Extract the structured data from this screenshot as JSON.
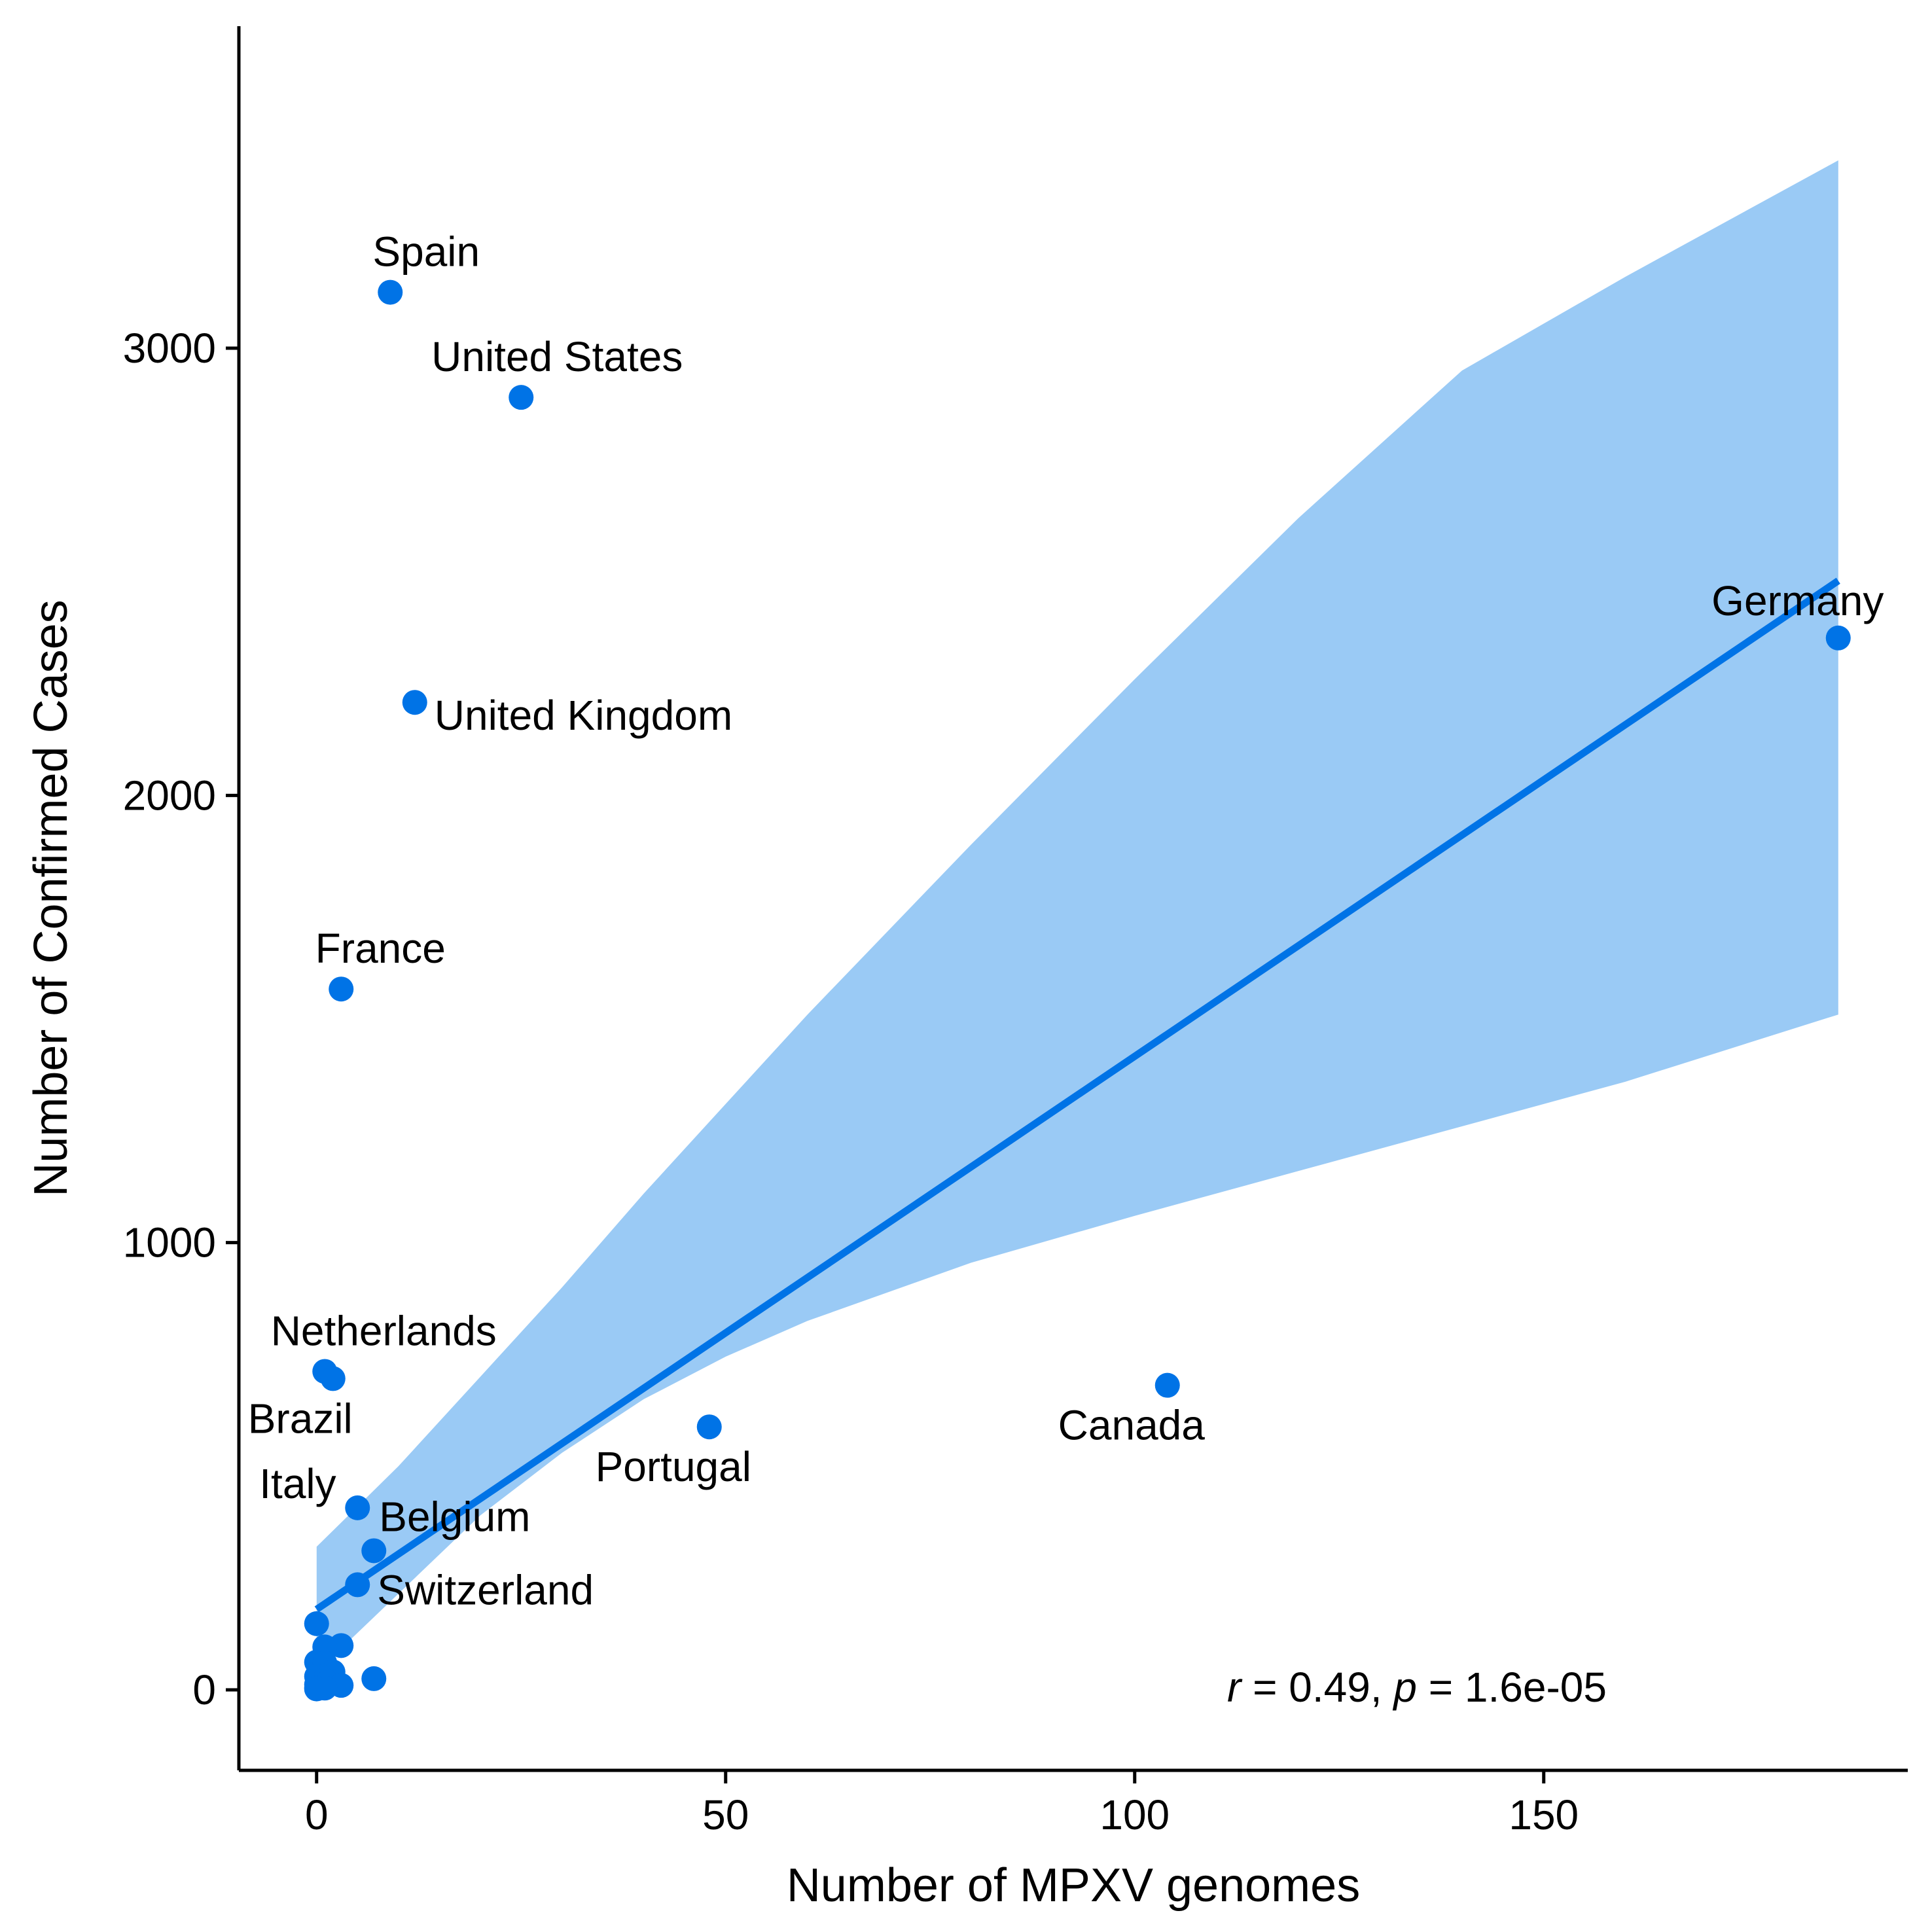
{
  "chart_data": {
    "type": "scatter",
    "xlabel": "Number of MPXV genomes",
    "ylabel": "Number of Confirmed Cases",
    "xlim": [
      -9.5,
      194.5
    ],
    "ylim": [
      -180,
      3720
    ],
    "xticks": [
      0,
      50,
      100,
      150
    ],
    "yticks": [
      0,
      1000,
      2000,
      3000
    ],
    "grid": false,
    "points": [
      {
        "label": "Spain",
        "x": 9,
        "y": 3125
      },
      {
        "label": "United States",
        "x": 25,
        "y": 2890
      },
      {
        "label": "Germany",
        "x": 186,
        "y": 2352
      },
      {
        "label": "United Kingdom",
        "x": 12,
        "y": 2208
      },
      {
        "label": "France",
        "x": 3,
        "y": 1567
      },
      {
        "label": "Netherlands",
        "x": 1,
        "y": 712
      },
      {
        "label": "Brazil",
        "x": 2,
        "y": 696
      },
      {
        "label": "Canada",
        "x": 104,
        "y": 681
      },
      {
        "label": "Portugal",
        "x": 48,
        "y": 588
      },
      {
        "label": "Italy",
        "x": 5,
        "y": 407
      },
      {
        "label": "Belgium",
        "x": 7,
        "y": 311
      },
      {
        "label": "Switzerland",
        "x": 5,
        "y": 235
      },
      {
        "label": "",
        "x": 0,
        "y": 148
      },
      {
        "label": "",
        "x": 3,
        "y": 99
      },
      {
        "label": "",
        "x": 1,
        "y": 96
      },
      {
        "label": "",
        "x": 0,
        "y": 62
      },
      {
        "label": "",
        "x": 1,
        "y": 60
      },
      {
        "label": "",
        "x": 2,
        "y": 40
      },
      {
        "label": "",
        "x": 0,
        "y": 30
      },
      {
        "label": "",
        "x": 7,
        "y": 25
      },
      {
        "label": "",
        "x": 1,
        "y": 22
      },
      {
        "label": "",
        "x": 0,
        "y": 12
      },
      {
        "label": "",
        "x": 3,
        "y": 10
      },
      {
        "label": "",
        "x": 0,
        "y": 5
      },
      {
        "label": "",
        "x": 1,
        "y": 4
      },
      {
        "label": "",
        "x": 0,
        "y": 2
      }
    ],
    "regression": {
      "x": [
        0,
        186
      ],
      "y": [
        180,
        2480
      ]
    },
    "confidence_band": {
      "x": [
        0,
        10,
        20,
        30,
        40,
        50,
        60,
        80,
        100,
        120,
        140,
        160,
        186
      ],
      "upper": [
        320,
        500,
        700,
        900,
        1110,
        1310,
        1510,
        1890,
        2260,
        2620,
        2950,
        3160,
        3420
      ],
      "lower": [
        40,
        215,
        390,
        530,
        650,
        745,
        825,
        955,
        1060,
        1160,
        1260,
        1360,
        1510
      ]
    },
    "annotation": {
      "r_symbol": "r",
      "r_text": " = 0.49, ",
      "p_symbol": "p",
      "p_text": " = 1.6e-05"
    },
    "colors": {
      "points": "#0073E6",
      "line": "#0073E6",
      "band": "#9ACAF5",
      "axis": "#000000"
    }
  }
}
